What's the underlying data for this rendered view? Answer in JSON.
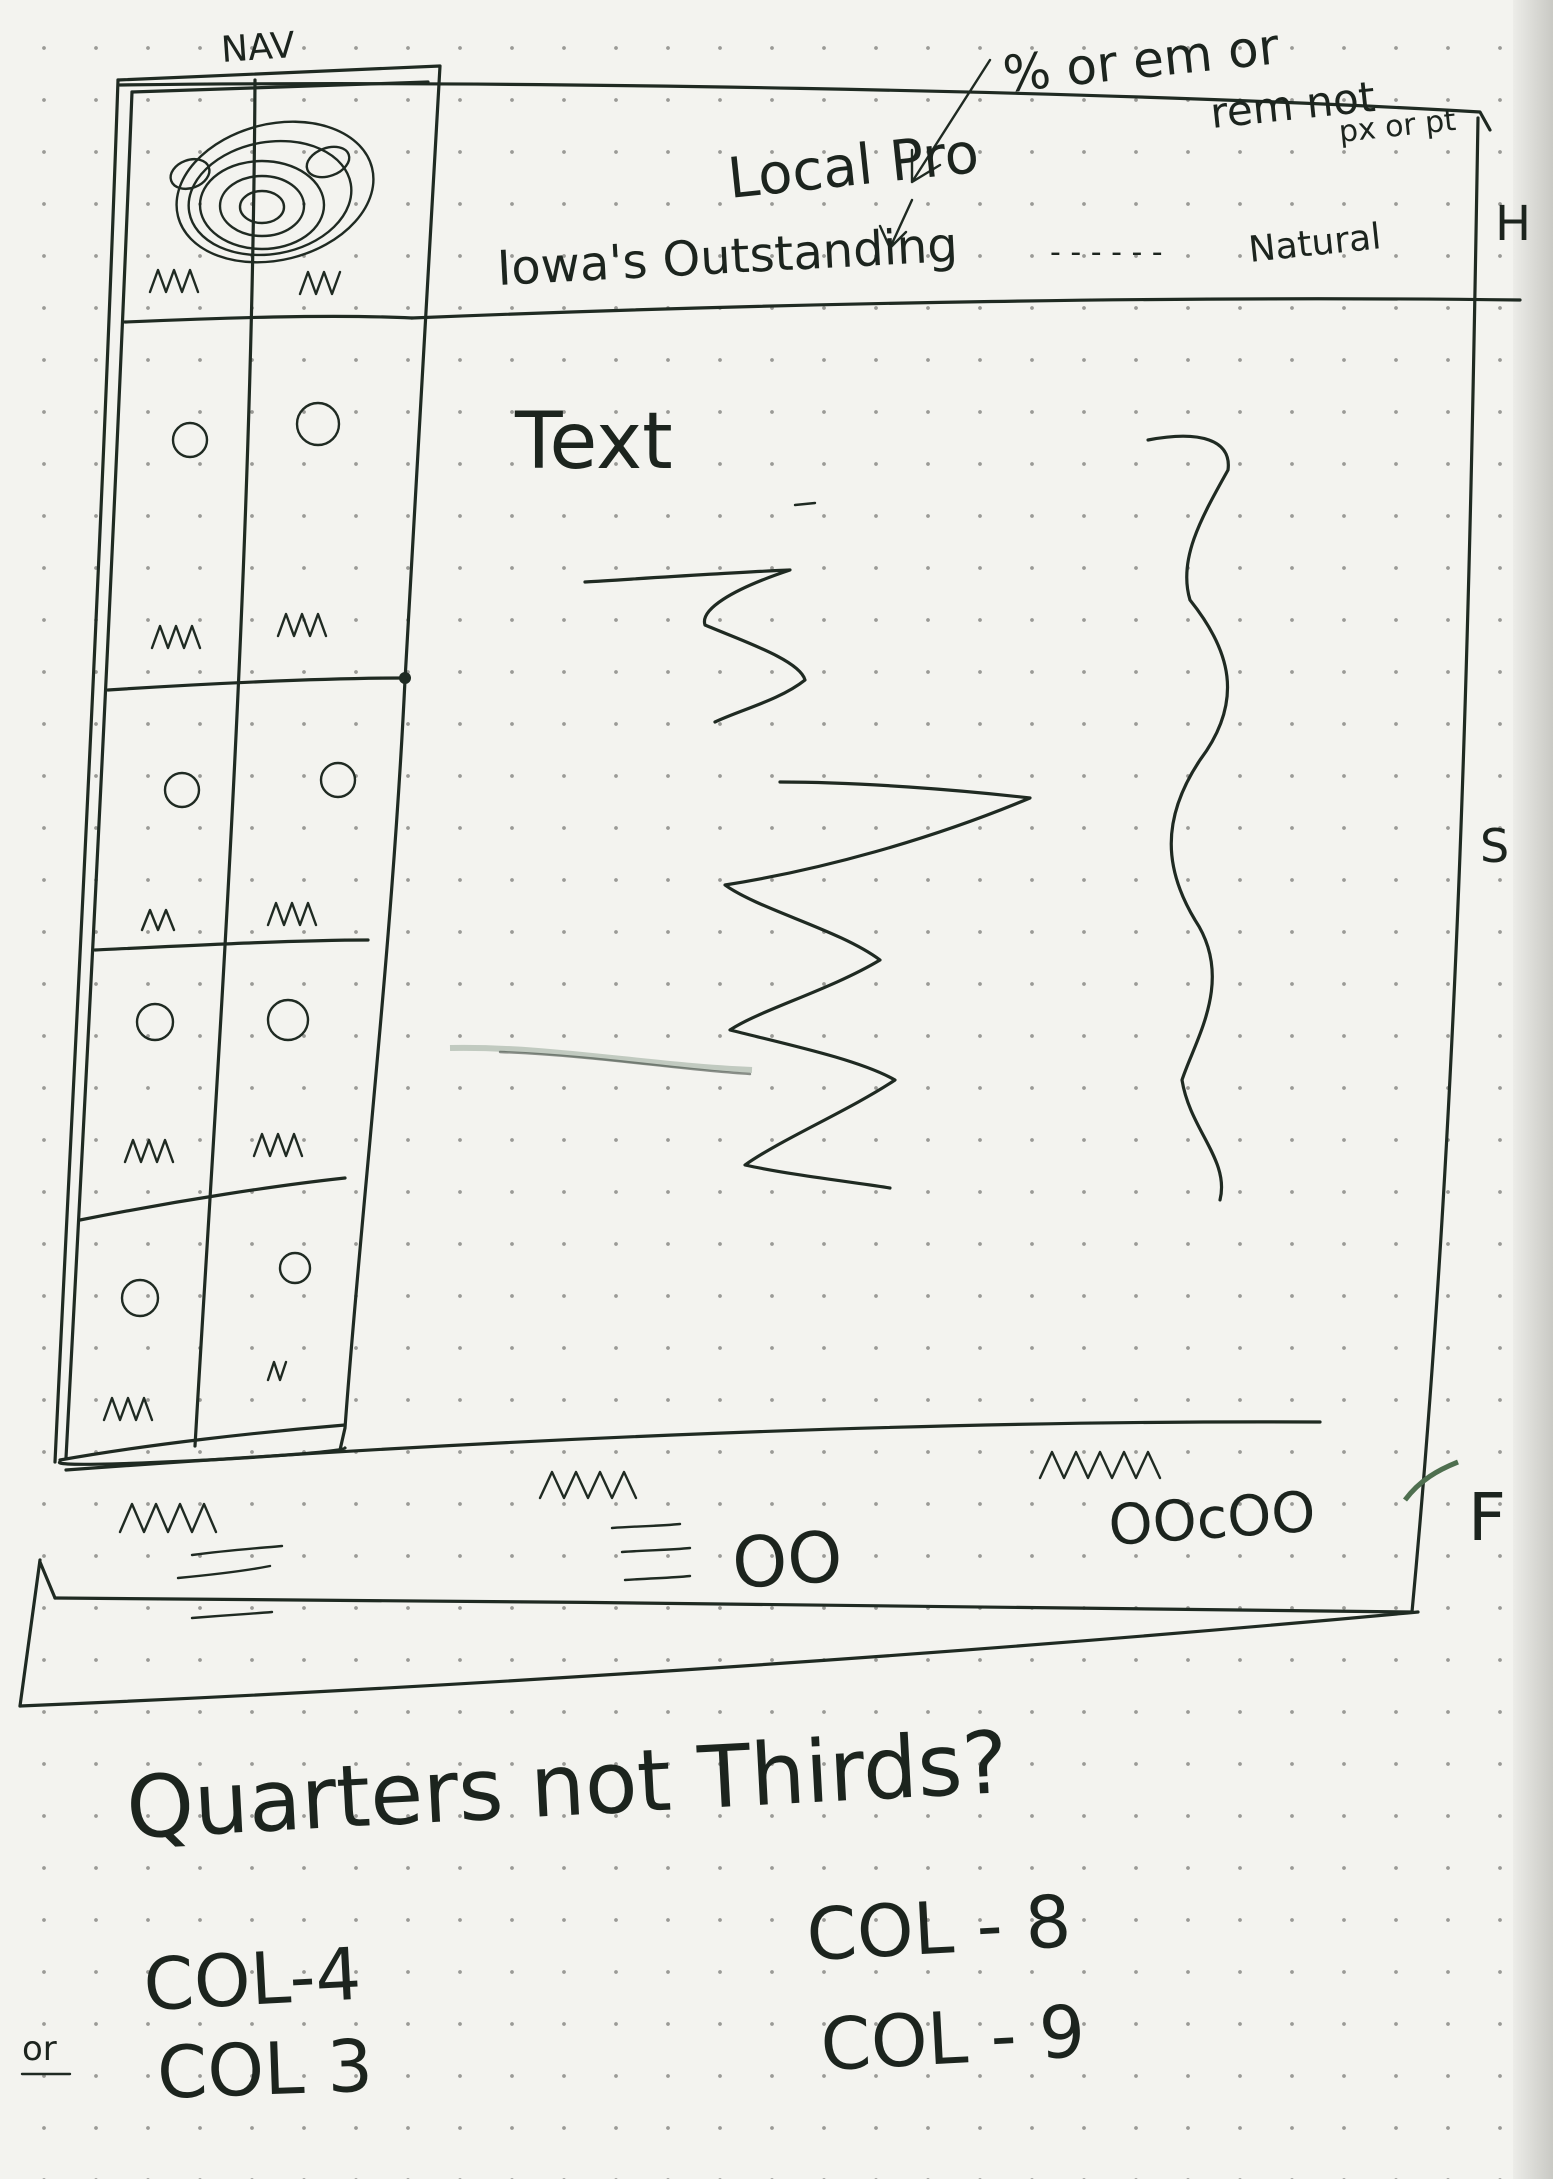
{
  "wireframe": {
    "nav_label": "NAV",
    "units_note_line1": "% or em or",
    "units_note_line2": "rem not",
    "units_note_line3": "px or pt",
    "logo_note": "Local Pro",
    "header_title": "Iowa's Outstanding",
    "header_ellipsis": "- - - - - -",
    "header_tail": "Natural",
    "header_marker": "H",
    "content_text": "Text",
    "section_marker": "S",
    "footer_marker": "F",
    "footer_dots": "OOcOO",
    "footer_circles": "OO"
  },
  "notes": {
    "question": "Quarters not Thirds?",
    "margin_mark": "or",
    "col_left_1": "COL-4",
    "col_left_2": "COL 3",
    "col_right_1": "COL - 8",
    "col_right_2": "COL - 9"
  }
}
